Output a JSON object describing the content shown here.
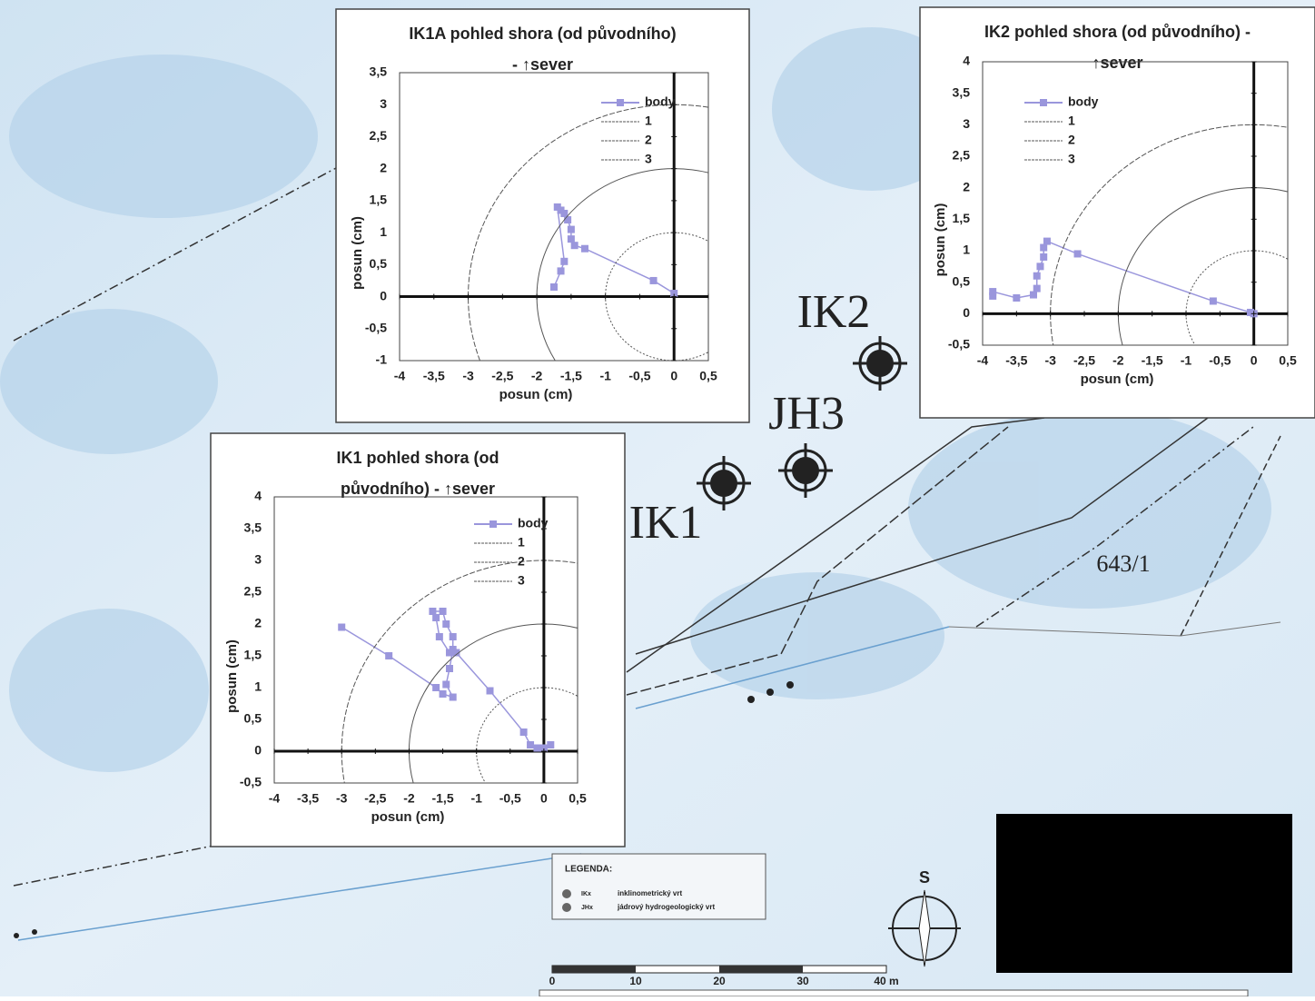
{
  "chart_data": [
    {
      "type": "line",
      "title": "IK1A pohled shora (od původního)",
      "subtitle": "- ↑sever",
      "xlabel": "posun (cm)",
      "ylabel": "posun (cm)",
      "xlim": [
        -4,
        0.5
      ],
      "ylim": [
        -1,
        3.5
      ],
      "xticks": [
        -4,
        {
          "value": -3.5,
          "label": "-3,5"
        },
        -3,
        {
          "value": -2.5,
          "label": "-2,5"
        },
        -2,
        {
          "value": -1.5,
          "label": "-1,5"
        },
        -1,
        {
          "value": -0.5,
          "label": "-0,5"
        },
        0,
        {
          "value": 0.5,
          "label": "0,5"
        }
      ],
      "yticks": [
        -1,
        {
          "value": -0.5,
          "label": "-0,5"
        },
        0,
        {
          "value": 0.5,
          "label": "0,5"
        },
        1,
        {
          "value": 1.5,
          "label": "1,5"
        },
        2,
        {
          "value": 2.5,
          "label": "2,5"
        },
        3,
        {
          "value": 3.5,
          "label": "3,5"
        }
      ],
      "series": [
        {
          "name": "body",
          "color": "#9a96dc",
          "x": [
            0,
            -0.3,
            -1.3,
            -1.45,
            -1.5,
            -1.5,
            -1.55,
            -1.6,
            -1.65,
            -1.7,
            -1.6,
            -1.65,
            -1.75
          ],
          "values": [
            0.05,
            0.25,
            0.75,
            0.8,
            0.9,
            1.05,
            1.2,
            1.3,
            1.35,
            1.4,
            0.55,
            0.4,
            0.15
          ]
        },
        {
          "name": "1",
          "color": "#555555",
          "radius": 1
        },
        {
          "name": "2",
          "color": "#555555",
          "radius": 2
        },
        {
          "name": "3",
          "color": "#555555",
          "radius": 3
        }
      ]
    },
    {
      "type": "line",
      "title": "IK2 pohled shora (od původního) -",
      "subtitle": "↑sever",
      "xlabel": "posun (cm)",
      "ylabel": "posun (cm)",
      "xlim": [
        -4,
        0.5
      ],
      "ylim": [
        -0.5,
        4
      ],
      "xticks": [
        -4,
        {
          "value": -3.5,
          "label": "-3,5"
        },
        -3,
        {
          "value": -2.5,
          "label": "-2,5"
        },
        -2,
        {
          "value": -1.5,
          "label": "-1,5"
        },
        -1,
        {
          "value": -0.5,
          "label": "-0,5"
        },
        0,
        {
          "value": 0.5,
          "label": "0,5"
        }
      ],
      "yticks": [
        {
          "value": -0.5,
          "label": "-0,5"
        },
        0,
        {
          "value": 0.5,
          "label": "0,5"
        },
        1,
        {
          "value": 1.5,
          "label": "1,5"
        },
        2,
        {
          "value": 2.5,
          "label": "2,5"
        },
        3,
        {
          "value": 3.5,
          "label": "3,5"
        },
        4
      ],
      "series": [
        {
          "name": "body",
          "color": "#9a96dc",
          "x": [
            0,
            -0.05,
            -0.6,
            -2.6,
            -3.05,
            -3.1,
            -3.1,
            -3.15,
            -3.2,
            -3.2,
            -3.25,
            -3.5,
            -3.85,
            -3.85
          ],
          "values": [
            0,
            0.02,
            0.2,
            0.95,
            1.15,
            1.05,
            0.9,
            0.75,
            0.6,
            0.4,
            0.3,
            0.25,
            0.35,
            0.28
          ]
        },
        {
          "name": "1",
          "color": "#555555",
          "radius": 1
        },
        {
          "name": "2",
          "color": "#555555",
          "radius": 2
        },
        {
          "name": "3",
          "color": "#555555",
          "radius": 3
        }
      ]
    },
    {
      "type": "line",
      "title": "IK1 pohled shora (od",
      "subtitle": "původního) - ↑sever",
      "xlabel": "posun (cm)",
      "ylabel": "posun (cm)",
      "xlim": [
        -4,
        0.5
      ],
      "ylim": [
        -0.5,
        4
      ],
      "xticks": [
        -4,
        {
          "value": -3.5,
          "label": "-3,5"
        },
        -3,
        {
          "value": -2.5,
          "label": "-2,5"
        },
        -2,
        {
          "value": -1.5,
          "label": "-1,5"
        },
        -1,
        {
          "value": -0.5,
          "label": "-0,5"
        },
        0,
        {
          "value": 0.5,
          "label": "0,5"
        }
      ],
      "yticks": [
        {
          "value": -0.5,
          "label": "-0,5"
        },
        0,
        {
          "value": 0.5,
          "label": "0,5"
        },
        1,
        {
          "value": 1.5,
          "label": "1,5"
        },
        2,
        {
          "value": 2.5,
          "label": "2,5"
        },
        3,
        {
          "value": 3.5,
          "label": "3,5"
        },
        4
      ],
      "series": [
        {
          "name": "body",
          "color": "#9a96dc",
          "x": [
            0.1,
            0,
            -0.1,
            -0.2,
            -0.3,
            -0.8,
            -1.3,
            -1.4,
            -1.55,
            -1.6,
            -1.65,
            -1.5,
            -1.45,
            -1.35,
            -1.35,
            -1.4,
            -1.45,
            -1.35,
            -1.5,
            -1.6,
            -2.3,
            -3
          ],
          "values": [
            0.1,
            0.05,
            0.05,
            0.1,
            0.3,
            0.95,
            1.55,
            1.55,
            1.8,
            2.1,
            2.2,
            2.2,
            2.0,
            1.8,
            1.6,
            1.3,
            1.05,
            0.85,
            0.9,
            1.0,
            1.5,
            1.95
          ]
        },
        {
          "name": "1",
          "color": "#555555",
          "radius": 1
        },
        {
          "name": "2",
          "color": "#555555",
          "radius": 2
        },
        {
          "name": "3",
          "color": "#555555",
          "radius": 3
        }
      ]
    }
  ],
  "map": {
    "labels": [
      "IK2",
      "JH3",
      "IK1",
      "643/1"
    ],
    "legend": {
      "title": "LEGENDA:",
      "items": [
        {
          "symbol": "IKx",
          "text": "inklinometrický vrt"
        },
        {
          "symbol": "JHx",
          "text": "jádrový hydrogeologický vrt"
        }
      ]
    },
    "scale": [
      "0",
      "10",
      "20",
      "30",
      "40 m"
    ],
    "compass": "S"
  }
}
